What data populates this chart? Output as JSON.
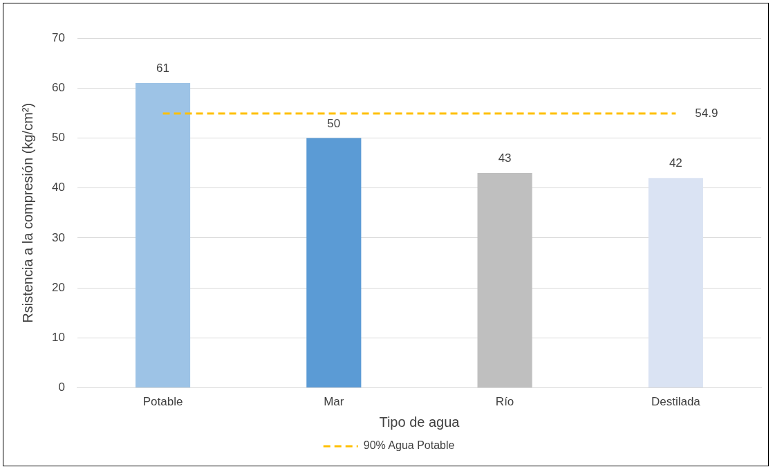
{
  "chart_data": {
    "type": "bar",
    "xlabel": "Tipo de agua",
    "ylabel": "Rsistencia a la compresión (kg/cm²)",
    "categories": [
      "Potable",
      "Mar",
      "Río",
      "Destilada"
    ],
    "series": [
      {
        "colors": [
          "#9dc3e6",
          "#5b9bd5",
          "#bfbfbf",
          "#dae3f3"
        ],
        "values": [
          61,
          50,
          43,
          42
        ],
        "value_labels": [
          "61",
          "50",
          "43",
          "42"
        ]
      },
      {
        "type": "line",
        "name": "90% Agua Potable",
        "color": "#ffc000",
        "line_style": "dashed",
        "marker": "none",
        "values": [
          54.9,
          54.9,
          54.9,
          54.9
        ],
        "value_labels": [
          null,
          null,
          null,
          "54.9"
        ]
      }
    ],
    "ylim": [
      0,
      70
    ],
    "yticks": [
      0,
      10,
      20,
      30,
      40,
      50,
      60,
      70
    ],
    "grid": "y",
    "legend": "bottom"
  }
}
